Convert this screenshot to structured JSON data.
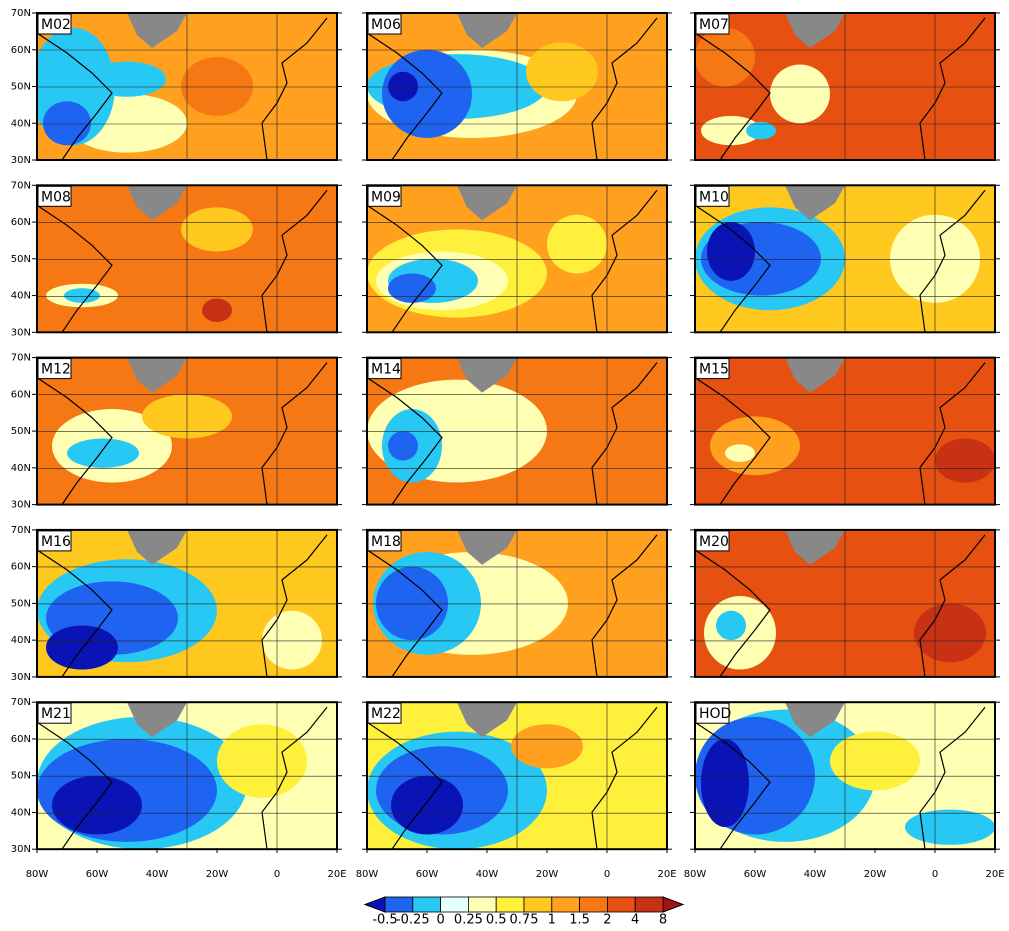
{
  "panels": [
    {
      "label": "M02"
    },
    {
      "label": "M06"
    },
    {
      "label": "M07"
    },
    {
      "label": "M08"
    },
    {
      "label": "M09"
    },
    {
      "label": "M10"
    },
    {
      "label": "M12"
    },
    {
      "label": "M14"
    },
    {
      "label": "M15"
    },
    {
      "label": "M16"
    },
    {
      "label": "M18"
    },
    {
      "label": "M20"
    },
    {
      "label": "M21"
    },
    {
      "label": "M22"
    },
    {
      "label": "HOD"
    }
  ],
  "lat_ticks": [
    "70N",
    "60N",
    "50N",
    "40N",
    "30N"
  ],
  "lon_ticks": [
    "80W",
    "60W",
    "40W",
    "20W",
    "0",
    "20E"
  ],
  "colorbar": {
    "levels": [
      -0.5,
      -0.25,
      0,
      0.25,
      0.5,
      0.75,
      1,
      1.5,
      2,
      4,
      8
    ],
    "colors": [
      "#0a14b4",
      "#1e64f0",
      "#28c8f5",
      "#e6ffff",
      "#ffffb4",
      "#fff03c",
      "#ffc81e",
      "#ffa01e",
      "#f57814",
      "#e65010",
      "#c83214",
      "#a01414"
    ]
  }
}
